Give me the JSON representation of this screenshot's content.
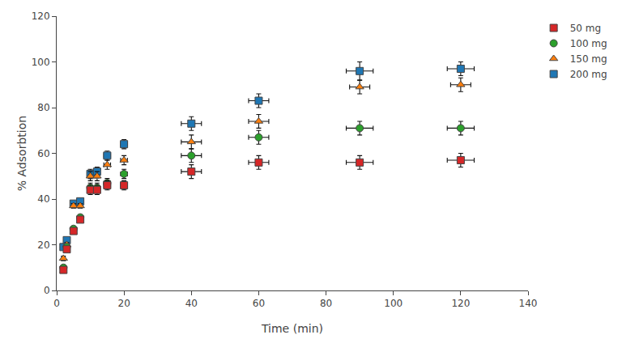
{
  "chart_data": {
    "type": "scatter",
    "xlabel": "Time (min)",
    "ylabel": "% Adsorbtion",
    "xlim": [
      0,
      140
    ],
    "ylim": [
      0,
      120
    ],
    "xticks": [
      0,
      20,
      40,
      60,
      80,
      100,
      120,
      140
    ],
    "yticks": [
      0,
      20,
      40,
      60,
      80,
      100,
      120
    ],
    "grid": false,
    "legend": "upper right",
    "series": [
      {
        "name": "200 mg",
        "marker": "square",
        "x": [
          2,
          3,
          5,
          7,
          10,
          12,
          15,
          20,
          40,
          60,
          90,
          120
        ],
        "values": [
          19,
          22,
          38,
          39,
          51,
          52,
          59,
          64,
          73,
          83,
          96,
          97
        ],
        "xerr": [
          0.5,
          0.5,
          0.5,
          0.5,
          0.5,
          0.5,
          1,
          1,
          3,
          3,
          4,
          4
        ],
        "yerr": [
          1,
          1,
          1,
          1,
          2,
          2,
          2,
          2,
          3,
          3,
          4,
          3
        ]
      },
      {
        "name": "150 mg",
        "marker": "triangle-up",
        "x": [
          2,
          3,
          5,
          7,
          10,
          12,
          15,
          20,
          40,
          60,
          90,
          120
        ],
        "values": [
          14,
          20,
          37,
          37,
          50,
          50,
          55,
          57,
          65,
          74,
          89,
          90
        ],
        "xerr": [
          0.5,
          0.5,
          0.5,
          0.5,
          0.5,
          0.5,
          1,
          1,
          3,
          3,
          3,
          3
        ],
        "yerr": [
          1,
          1,
          1,
          1,
          2,
          2,
          2,
          2,
          3,
          3,
          3,
          3
        ]
      },
      {
        "name": "100 mg",
        "marker": "circle",
        "x": [
          2,
          3,
          5,
          7,
          10,
          12,
          15,
          20,
          40,
          60,
          90,
          120
        ],
        "values": [
          10,
          19,
          27,
          32,
          45,
          45,
          47,
          51,
          59,
          67,
          71,
          71
        ],
        "xerr": [
          0.5,
          0.5,
          0.5,
          0.5,
          0.5,
          0.5,
          1,
          1,
          3,
          3,
          4,
          4
        ],
        "yerr": [
          1,
          1,
          1,
          1,
          2,
          2,
          2,
          2,
          3,
          3,
          3,
          3
        ]
      },
      {
        "name": "50 mg",
        "marker": "square",
        "x": [
          2,
          3,
          5,
          7,
          10,
          12,
          15,
          20,
          40,
          60,
          90,
          120
        ],
        "values": [
          9,
          18,
          26,
          31,
          44,
          44,
          46,
          46,
          52,
          56,
          56,
          57
        ],
        "xerr": [
          0.5,
          0.5,
          0.5,
          0.5,
          0.5,
          0.5,
          1,
          1,
          3,
          3,
          4,
          4
        ],
        "yerr": [
          1,
          1,
          1,
          1,
          2,
          2,
          2,
          2,
          3,
          3,
          3,
          3
        ]
      }
    ]
  }
}
